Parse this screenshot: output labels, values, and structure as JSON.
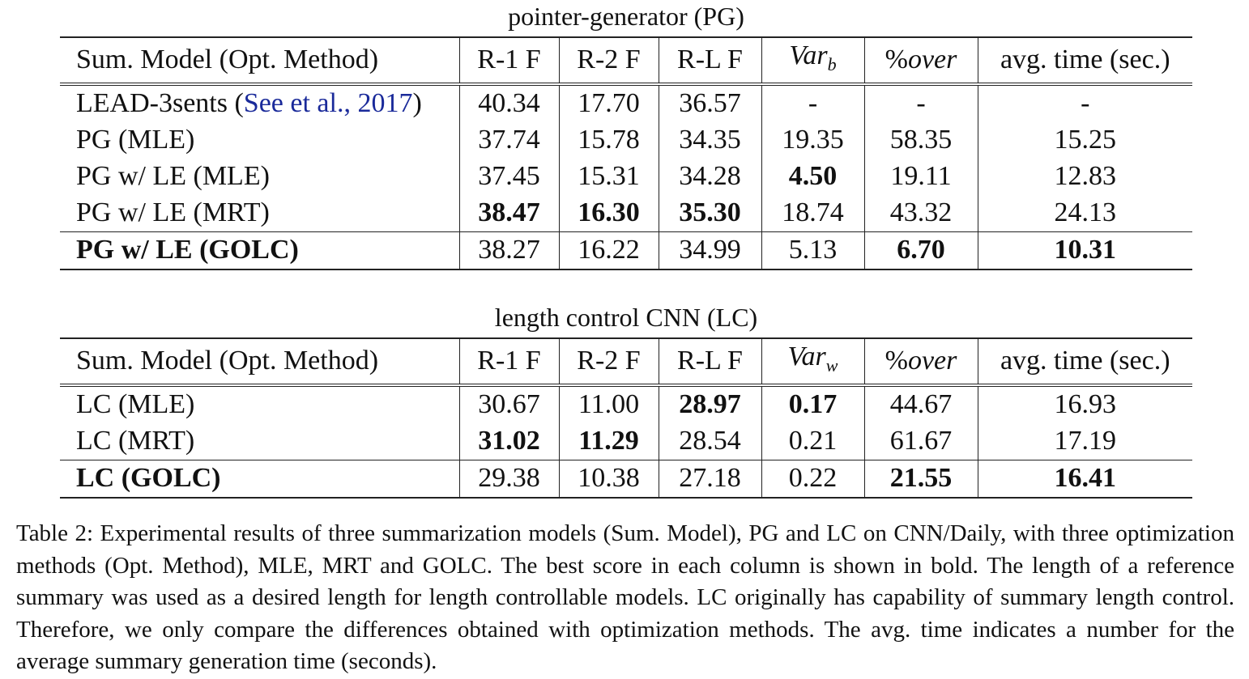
{
  "tables": [
    {
      "title": "pointer-generator (PG)",
      "headers": [
        "Sum. Model (Opt. Method)",
        "R-1 F",
        "R-2 F",
        "R-L F",
        "Var",
        "%over",
        "avg. time (sec.)"
      ],
      "var_sub": "b",
      "rows": [
        {
          "model": "LEAD-3sents",
          "cite": "See et al., 2017",
          "cells": [
            "40.34",
            "17.70",
            "36.57",
            "-",
            "-",
            "-"
          ],
          "bold": []
        },
        {
          "model": "PG (MLE)",
          "cells": [
            "37.74",
            "15.78",
            "34.35",
            "19.35",
            "58.35",
            "15.25"
          ],
          "bold": []
        },
        {
          "model": "PG w/ LE (MLE)",
          "cells": [
            "37.45",
            "15.31",
            "34.28",
            "4.50",
            "19.11",
            "12.83"
          ],
          "bold": [
            3
          ]
        },
        {
          "model": "PG w/ LE (MRT)",
          "cells": [
            "38.47",
            "16.30",
            "35.30",
            "18.74",
            "43.32",
            "24.13"
          ],
          "bold": [
            0,
            1,
            2
          ]
        },
        {
          "model": "PG w/ LE (GOLC)",
          "cells": [
            "38.27",
            "16.22",
            "34.99",
            "5.13",
            "6.70",
            "10.31"
          ],
          "bold": [
            4,
            5
          ],
          "model_bold": true
        }
      ]
    },
    {
      "title": "length control CNN (LC)",
      "headers": [
        "Sum. Model (Opt. Method)",
        "R-1 F",
        "R-2 F",
        "R-L F",
        "Var",
        "%over",
        "avg. time (sec.)"
      ],
      "var_sub": "w",
      "rows": [
        {
          "model": "LC (MLE)",
          "cells": [
            "30.67",
            "11.00",
            "28.97",
            "0.17",
            "44.67",
            "16.93"
          ],
          "bold": [
            2,
            3
          ]
        },
        {
          "model": "LC (MRT)",
          "cells": [
            "31.02",
            "11.29",
            "28.54",
            "0.21",
            "61.67",
            "17.19"
          ],
          "bold": [
            0,
            1
          ]
        },
        {
          "model": "LC (GOLC)",
          "cells": [
            "29.38",
            "10.38",
            "27.18",
            "0.22",
            "21.55",
            "16.41"
          ],
          "bold": [
            4,
            5
          ],
          "model_bold": true
        }
      ]
    }
  ],
  "caption": "Table 2: Experimental results of three summarization models (Sum. Model), PG and LC on CNN/Daily, with three optimization methods (Opt. Method), MLE, MRT and GOLC. The best score in each column is shown in bold. The length of a reference summary was used as a desired length for length controllable models. LC originally has capability of summary length control. Therefore, we only compare the differences obtained with optimization methods. The avg. time indicates a number for the average summary generation time (seconds)."
}
